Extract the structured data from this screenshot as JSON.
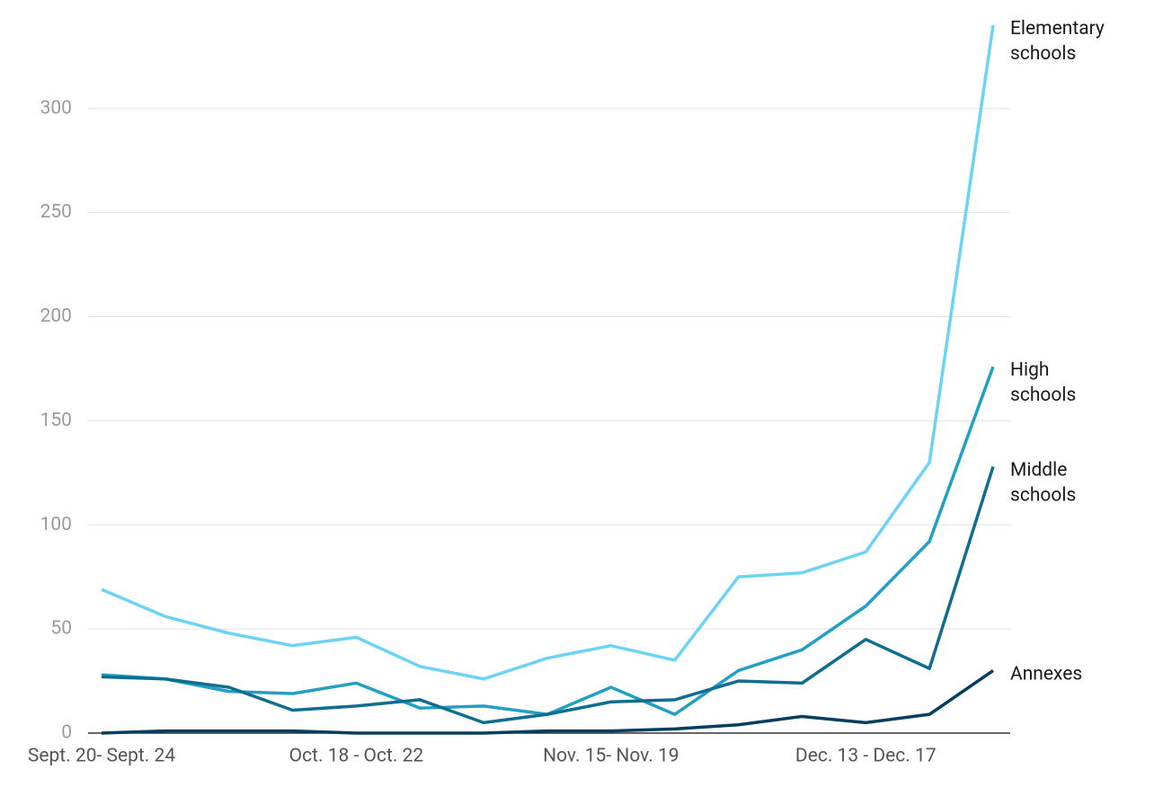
{
  "chart_data": {
    "type": "line",
    "categories": [
      "Sept. 20- Sept. 24",
      null,
      null,
      null,
      "Oct. 18 - Oct. 22",
      null,
      null,
      null,
      "Nov. 15- Nov. 19",
      null,
      null,
      null,
      "Dec. 13 - Dec. 17",
      null,
      null
    ],
    "series": [
      {
        "name": "Elementary schools",
        "color": "#6dd3f5",
        "values": [
          69,
          56,
          48,
          42,
          46,
          32,
          26,
          36,
          42,
          35,
          75,
          77,
          87,
          130,
          340
        ]
      },
      {
        "name": "High schools",
        "color": "#22a0c4",
        "values": [
          28,
          26,
          20,
          19,
          24,
          12,
          13,
          9,
          22,
          9,
          30,
          40,
          61,
          92,
          176
        ]
      },
      {
        "name": "Middle schools",
        "color": "#0f6d8f",
        "values": [
          27,
          26,
          22,
          11,
          13,
          16,
          5,
          9,
          15,
          16,
          25,
          24,
          45,
          31,
          128
        ]
      },
      {
        "name": "Annexes",
        "color": "#053e5e",
        "values": [
          0,
          1,
          1,
          1,
          0,
          0,
          0,
          1,
          1,
          2,
          4,
          8,
          5,
          9,
          30
        ]
      }
    ],
    "ylim": [
      0,
      340
    ],
    "yticks": [
      0,
      50,
      100,
      150,
      200,
      250,
      300
    ],
    "grid": true
  }
}
